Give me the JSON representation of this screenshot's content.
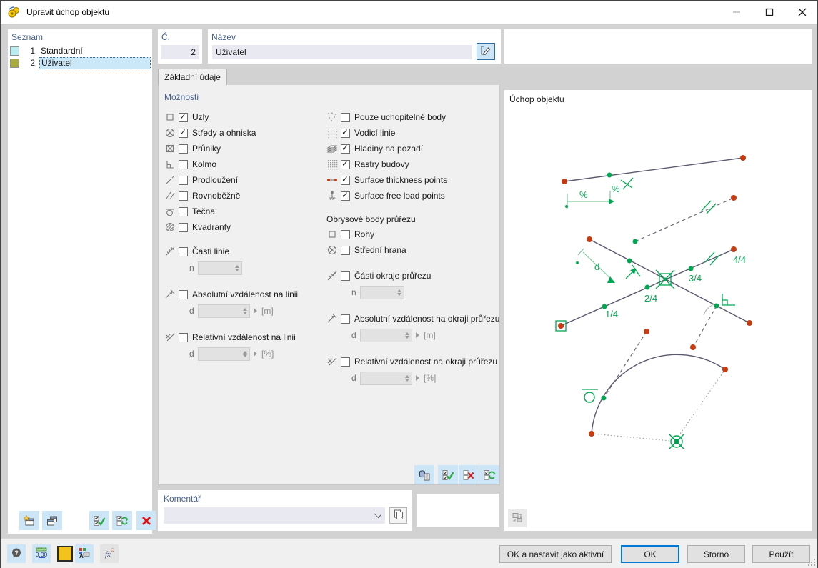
{
  "window": {
    "title": "Upravit úchop objektu"
  },
  "seznam": {
    "header": "Seznam",
    "items": [
      {
        "num": "1",
        "name": "Standardní",
        "color": "#b8ecf0",
        "selected": false
      },
      {
        "num": "2",
        "name": "Uživatel",
        "color": "#a8aa3c",
        "selected": true
      }
    ]
  },
  "fields": {
    "number_label": "Č.",
    "number_value": "2",
    "name_label": "Název",
    "name_value": "Uživatel"
  },
  "tabs": [
    {
      "label": "Základní údaje",
      "active": true
    }
  ],
  "options": {
    "heading": "Možnosti",
    "left_checks": [
      {
        "icon": "node",
        "label": "Uzly",
        "checked": true
      },
      {
        "icon": "center-focus",
        "label": "Středy a ohniska",
        "checked": true
      },
      {
        "icon": "intersection",
        "label": "Průniky",
        "checked": false
      },
      {
        "icon": "perpendicular",
        "label": "Kolmo",
        "checked": false
      },
      {
        "icon": "extension",
        "label": "Prodloužení",
        "checked": false
      },
      {
        "icon": "parallel",
        "label": "Rovnoběžně",
        "checked": false
      },
      {
        "icon": "tangent",
        "label": "Tečna",
        "checked": false
      },
      {
        "icon": "quadrant",
        "label": "Kvadranty",
        "checked": false
      }
    ],
    "left_params": [
      {
        "icon": "line-parts",
        "label": "Části linie",
        "checked": false,
        "param": "n",
        "value": "",
        "unit": "",
        "advance": false
      },
      {
        "icon": "abs-distance",
        "label": "Absolutní vzdálenost na linii",
        "checked": false,
        "param": "d",
        "value": "",
        "unit": "[m]",
        "advance": true
      },
      {
        "icon": "rel-distance",
        "label": "Relativní vzdálenost na linii",
        "checked": false,
        "param": "d",
        "value": "",
        "unit": "[%]",
        "advance": true
      }
    ],
    "right_checks": [
      {
        "icon": "snap-points",
        "label": "Pouze uchopitelné body",
        "checked": false
      },
      {
        "icon": "guide-lines",
        "label": "Vodicí linie",
        "checked": true
      },
      {
        "icon": "background-layers",
        "label": "Hladiny na pozadí",
        "checked": true
      },
      {
        "icon": "building-grid",
        "label": "Rastry budovy",
        "checked": true
      },
      {
        "icon": "thickness-points",
        "label": "Surface thickness points",
        "checked": true
      },
      {
        "icon": "free-load-points",
        "label": "Surface free load points",
        "checked": true
      },
      {
        "subheading": "Obrysové body průřezu"
      },
      {
        "icon": "corner",
        "label": "Rohy",
        "checked": false
      },
      {
        "icon": "middle-edge",
        "label": "Střední hrana",
        "checked": false
      }
    ],
    "right_params": [
      {
        "icon": "edge-parts",
        "label": "Části okraje průřezu",
        "checked": false,
        "param": "n",
        "value": "",
        "unit": "",
        "advance": false
      },
      {
        "icon": "abs-distance",
        "label": "Absolutní vzdálenost na okraji průřezu",
        "checked": false,
        "param": "d",
        "value": "",
        "unit": "[m]",
        "advance": true
      },
      {
        "icon": "rel-distance",
        "label": "Relativní vzdálenost na okraji průřezu",
        "checked": false,
        "param": "d",
        "value": "",
        "unit": "[%]",
        "advance": true
      }
    ]
  },
  "comment": {
    "heading": "Komentář",
    "value": ""
  },
  "preview": {
    "heading": "Úchop objektu",
    "labels": {
      "pct_line": "%",
      "pct_dim": "%",
      "d_dim": "d",
      "q1": "1/4",
      "q2": "2/4",
      "q3": "3/4",
      "q4": "4/4"
    }
  },
  "footer": {
    "ok_active": "OK a nastavit jako aktivní",
    "ok": "OK",
    "cancel": "Storno",
    "apply": "Použít"
  },
  "colors": {
    "accent_green": "#00a651",
    "point_red": "#c63b11",
    "wire": "#5a5a6e",
    "selection": "#cbe8f9",
    "swatch_standard": "#b8ecf0",
    "swatch_user": "#a8aa3c"
  }
}
